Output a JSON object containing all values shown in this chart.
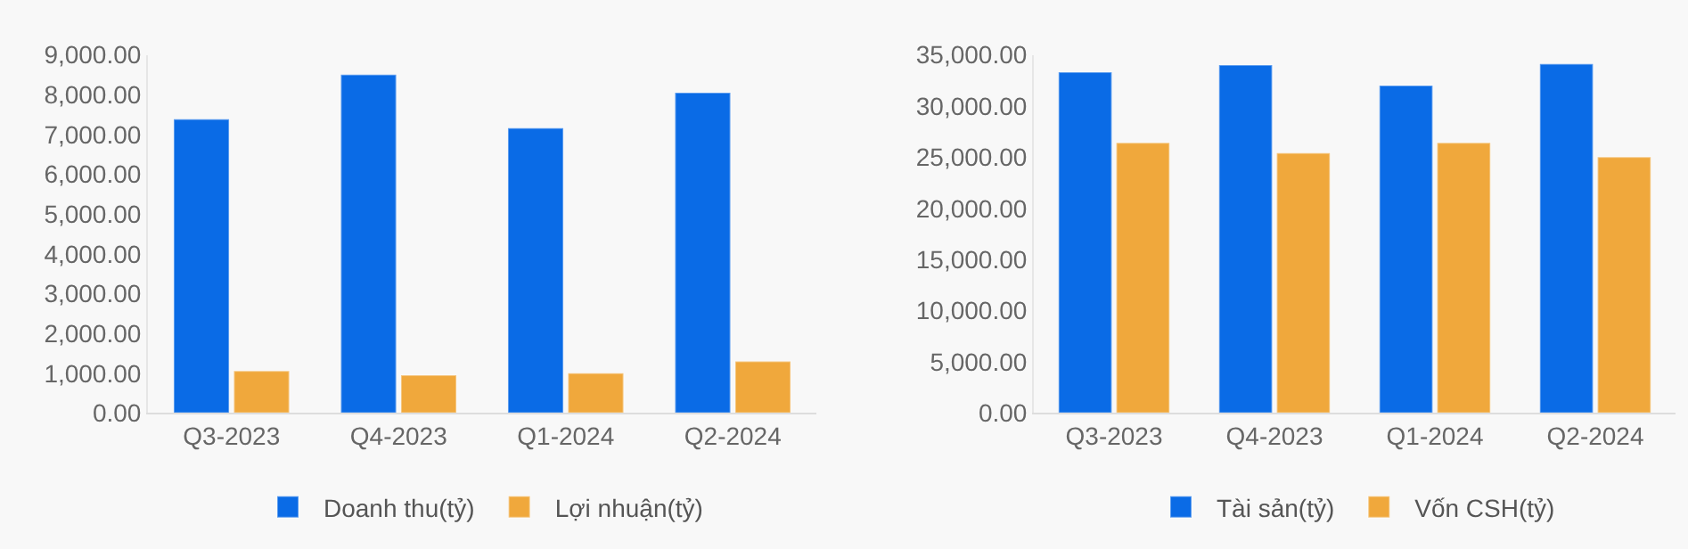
{
  "chart_data": [
    {
      "type": "bar",
      "categories": [
        "Q3-2023",
        "Q4-2023",
        "Q1-2024",
        "Q2-2024"
      ],
      "series": [
        {
          "name": "Doanh thu(tỷ)",
          "color": "#0a6be6",
          "values": [
            7380,
            8500,
            7160,
            8050
          ]
        },
        {
          "name": "Lợi nhuận(tỷ)",
          "color": "#f0a83c",
          "values": [
            1060,
            950,
            1000,
            1300
          ]
        }
      ],
      "ylim": [
        0,
        9000
      ],
      "yticks": [
        {
          "value": 0,
          "label": "0.00"
        },
        {
          "value": 1000,
          "label": "1,000.00"
        },
        {
          "value": 2000,
          "label": "2,000.00"
        },
        {
          "value": 3000,
          "label": "3,000.00"
        },
        {
          "value": 4000,
          "label": "4,000.00"
        },
        {
          "value": 5000,
          "label": "5,000.00"
        },
        {
          "value": 6000,
          "label": "6,000.00"
        },
        {
          "value": 7000,
          "label": "7,000.00"
        },
        {
          "value": 8000,
          "label": "8,000.00"
        },
        {
          "value": 9000,
          "label": "9,000.00"
        }
      ],
      "grid": false,
      "legend": "bottom"
    },
    {
      "type": "bar",
      "categories": [
        "Q3-2023",
        "Q4-2023",
        "Q1-2024",
        "Q2-2024"
      ],
      "series": [
        {
          "name": "Tài sản(tỷ)",
          "color": "#0a6be6",
          "values": [
            33300,
            34000,
            32000,
            34100
          ]
        },
        {
          "name": "Vốn CSH(tỷ)",
          "color": "#f0a83c",
          "values": [
            26400,
            25400,
            26400,
            25000
          ]
        }
      ],
      "ylim": [
        0,
        35000
      ],
      "yticks": [
        {
          "value": 0,
          "label": "0.00"
        },
        {
          "value": 5000,
          "label": "5,000.00"
        },
        {
          "value": 10000,
          "label": "10,000.00"
        },
        {
          "value": 15000,
          "label": "15,000.00"
        },
        {
          "value": 20000,
          "label": "20,000.00"
        },
        {
          "value": 25000,
          "label": "25,000.00"
        },
        {
          "value": 30000,
          "label": "30,000.00"
        },
        {
          "value": 35000,
          "label": "35,000.00"
        }
      ],
      "grid": false,
      "legend": "bottom"
    }
  ]
}
